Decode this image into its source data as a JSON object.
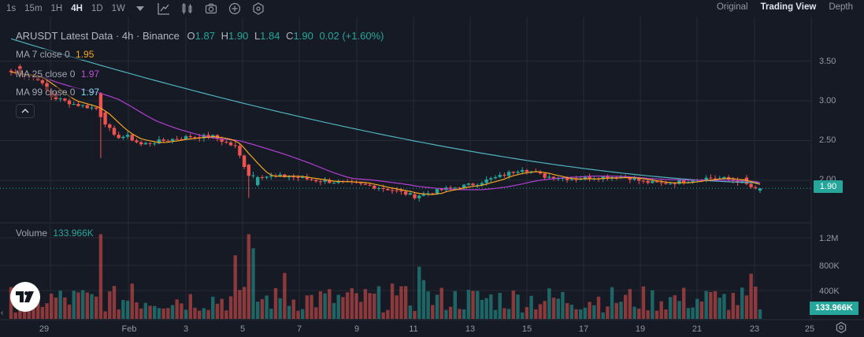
{
  "toolbar": {
    "timeframes": [
      "1s",
      "15m",
      "1H",
      "4H",
      "1D",
      "1W"
    ],
    "active_timeframe": "4H",
    "tool_icons": [
      "chevron-down-icon",
      "line-tool-icon",
      "indicators-icon",
      "camera-icon",
      "add-icon",
      "settings-hex-icon"
    ],
    "view_tabs": [
      "Original",
      "Trading View",
      "Depth"
    ],
    "active_view": "Trading View"
  },
  "legend": {
    "symbol": "ARUSDT Latest Data",
    "interval": "4h",
    "exchange": "Binance",
    "open_label": "O",
    "open": "1.87",
    "high_label": "H",
    "high": "1.90",
    "low_label": "L",
    "low": "1.84",
    "close_label": "C",
    "close": "1.90",
    "change": "0.02 (+1.60%)",
    "ma7_label": "MA 7 close 0",
    "ma7_value": "1.95",
    "ma25_label": "MA 25 close 0",
    "ma25_value": "1.97",
    "ma99_label": "MA 99 close 0",
    "ma99_value": "1.97",
    "volume_label": "Volume",
    "volume_value": "133.966K"
  },
  "colors": {
    "background": "#161a25",
    "grid": "#262a35",
    "up": "#26a69a",
    "down": "#ef5350",
    "ma7": "#f5a623",
    "ma25": "#b13fd0",
    "ma99": "#4fb3bf",
    "text_muted": "#9598a1"
  },
  "price_axis": {
    "labels": [
      "3.50",
      "3.00",
      "2.50",
      "2.00"
    ],
    "current_price": "1.90"
  },
  "volume_axis": {
    "labels": [
      "1.2M",
      "800K",
      "400K"
    ],
    "current_volume": "133.966K"
  },
  "time_axis": [
    "29",
    "Feb",
    "3",
    "5",
    "7",
    "9",
    "11",
    "13",
    "15",
    "17",
    "19",
    "21",
    "23",
    "25"
  ],
  "chart_data": {
    "type": "candlestick",
    "title": "ARUSDT Latest Data · 4h · Binance",
    "ylim": [
      1.6,
      3.9
    ],
    "volume_ylim": [
      0,
      1500000
    ],
    "ma_series": [
      {
        "name": "MA 7 close 0",
        "value": 1.95
      },
      {
        "name": "MA 25 close 0",
        "value": 1.97
      },
      {
        "name": "MA 99 close 0",
        "value": 1.97
      }
    ],
    "waypoints": [
      [
        0,
        3.36
      ],
      [
        6,
        3.28
      ],
      [
        9,
        3.05
      ],
      [
        14,
        2.96
      ],
      [
        19,
        2.9
      ],
      [
        23,
        2.55
      ],
      [
        26,
        2.55
      ],
      [
        29,
        2.45
      ],
      [
        34,
        2.5
      ],
      [
        40,
        2.55
      ],
      [
        45,
        2.55
      ],
      [
        50,
        2.42
      ],
      [
        53,
        2.07
      ],
      [
        57,
        2.05
      ],
      [
        62,
        2.05
      ],
      [
        68,
        2.0
      ],
      [
        74,
        1.97
      ],
      [
        80,
        1.93
      ],
      [
        85,
        1.88
      ],
      [
        90,
        1.8
      ],
      [
        96,
        1.88
      ],
      [
        103,
        1.95
      ],
      [
        109,
        2.05
      ],
      [
        114,
        2.15
      ],
      [
        119,
        2.05
      ],
      [
        125,
        2.02
      ],
      [
        131,
        2.04
      ],
      [
        137,
        2.05
      ],
      [
        141,
        1.98
      ],
      [
        145,
        1.96
      ],
      [
        149,
        1.98
      ],
      [
        154,
        2.03
      ],
      [
        159,
        2.02
      ],
      [
        163,
        1.98
      ],
      [
        166,
        1.88
      ]
    ],
    "events": [
      {
        "i": 2,
        "move": -0.12
      },
      {
        "i": 10,
        "move": -0.08
      },
      {
        "i": 20,
        "move": -0.3
      },
      {
        "i": 21,
        "move": -0.15
      },
      {
        "i": 53,
        "move": -0.14
      },
      {
        "i": 55,
        "move": 0.1
      },
      {
        "i": 90,
        "move": -0.05
      },
      {
        "i": 164,
        "move": -0.08
      }
    ],
    "volume_spikes": [
      {
        "i": 20,
        "value": 1200000
      },
      {
        "i": 27,
        "value": 500000
      },
      {
        "i": 50,
        "value": 900000
      },
      {
        "i": 53,
        "value": 1200000
      },
      {
        "i": 54,
        "value": 1000000
      },
      {
        "i": 61,
        "value": 650000
      },
      {
        "i": 85,
        "value": 500000
      },
      {
        "i": 91,
        "value": 740000
      },
      {
        "i": 92,
        "value": 550000
      },
      {
        "i": 158,
        "value": 300000
      },
      {
        "i": 165,
        "value": 640000
      }
    ],
    "last_volume": 133966
  }
}
